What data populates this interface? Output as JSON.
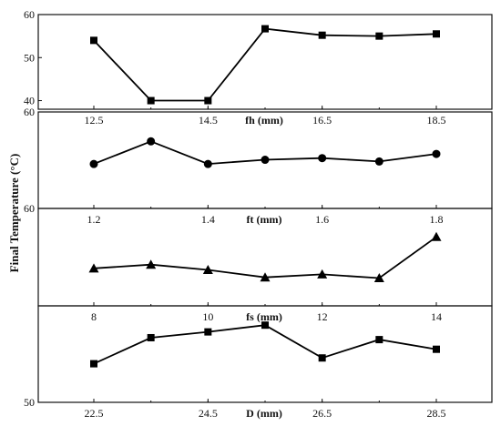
{
  "chart_data": [
    {
      "type": "line",
      "xlabel": "fh (mm)",
      "x": [
        12.5,
        13.5,
        14.5,
        15.5,
        16.5,
        17.5,
        18.5
      ],
      "values": [
        54,
        40,
        40,
        56.7,
        55.2,
        55,
        55.5
      ],
      "marker": "square",
      "xticks": [
        12.5,
        14.5,
        16.5,
        18.5
      ],
      "yticks": [
        40,
        50,
        60
      ],
      "ylim": [
        38,
        60
      ]
    },
    {
      "type": "line",
      "xlabel": "ft (mm)",
      "x": [
        1.2,
        1.3,
        1.4,
        1.5,
        1.6,
        1.7,
        1.8
      ],
      "values": [
        53.8,
        56.5,
        53.8,
        54.3,
        54.5,
        54.1,
        55
      ],
      "marker": "circle",
      "xticks": [
        1.2,
        1.4,
        1.6,
        1.8
      ],
      "yticks": [
        60
      ],
      "ylim": [
        48.5,
        60
      ]
    },
    {
      "type": "line",
      "xlabel": "fs (mm)",
      "x": [
        8,
        9,
        10,
        11,
        12,
        13,
        14
      ],
      "values": [
        52,
        52.5,
        51.8,
        50.8,
        51.2,
        50.7,
        56.2
      ],
      "marker": "triangle",
      "xticks": [
        8,
        10,
        12,
        14
      ],
      "yticks": [
        60
      ],
      "ylim": [
        47,
        60
      ]
    },
    {
      "type": "line",
      "xlabel": "D (mm)",
      "x": [
        22.5,
        23.5,
        24.5,
        25.5,
        26.5,
        27.5,
        28.5
      ],
      "values": [
        54,
        56.7,
        57.3,
        58,
        54.6,
        56.5,
        55.5
      ],
      "marker": "square",
      "xticks": [
        22.5,
        24.5,
        26.5,
        28.5
      ],
      "yticks": [
        50
      ],
      "ylim": [
        50,
        60
      ]
    }
  ],
  "ylabel": "Final Temperature (°C)",
  "colors": {
    "line": "#000000",
    "marker": "#000000",
    "axes": "#111111"
  }
}
